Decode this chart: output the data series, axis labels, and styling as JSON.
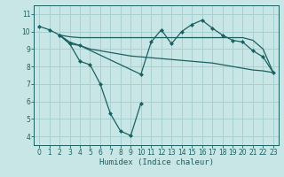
{
  "xlabel": "Humidex (Indice chaleur)",
  "bg_color": "#c8e6e6",
  "grid_color": "#a8d0d0",
  "line_color": "#1a6060",
  "xlim": [
    -0.5,
    23.5
  ],
  "ylim": [
    3.5,
    11.5
  ],
  "yticks": [
    4,
    5,
    6,
    7,
    8,
    9,
    10,
    11
  ],
  "xticks": [
    0,
    1,
    2,
    3,
    4,
    5,
    6,
    7,
    8,
    9,
    10,
    11,
    12,
    13,
    14,
    15,
    16,
    17,
    18,
    19,
    20,
    21,
    22,
    23
  ],
  "series": [
    {
      "x": [
        0,
        1,
        2,
        3,
        4,
        5,
        6,
        7,
        8,
        9,
        10
      ],
      "y": [
        10.3,
        10.1,
        9.8,
        9.3,
        8.3,
        8.1,
        7.0,
        5.3,
        4.3,
        4.05,
        5.9
      ],
      "marker": "D",
      "markersize": 2.5,
      "has_marker": true
    },
    {
      "x": [
        2,
        3,
        4,
        10,
        11,
        12,
        13,
        14,
        15,
        16,
        17,
        18,
        19,
        20,
        21,
        22,
        23
      ],
      "y": [
        9.8,
        9.3,
        9.2,
        7.55,
        9.4,
        10.1,
        9.3,
        10.0,
        10.4,
        10.65,
        10.2,
        9.8,
        9.5,
        9.4,
        8.9,
        8.55,
        7.65
      ],
      "marker": "D",
      "markersize": 2.5,
      "has_marker": true
    },
    {
      "x": [
        2,
        3,
        4,
        5,
        6,
        7,
        8,
        9,
        10,
        11,
        12,
        13,
        14,
        15,
        16,
        17,
        18,
        19,
        20,
        21,
        22,
        23
      ],
      "y": [
        9.8,
        9.7,
        9.65,
        9.65,
        9.65,
        9.65,
        9.65,
        9.65,
        9.65,
        9.65,
        9.65,
        9.65,
        9.65,
        9.65,
        9.65,
        9.65,
        9.65,
        9.65,
        9.65,
        9.5,
        9.0,
        7.65
      ],
      "marker": null,
      "markersize": 0,
      "has_marker": false
    },
    {
      "x": [
        2,
        3,
        4,
        5,
        6,
        7,
        8,
        9,
        10,
        11,
        12,
        13,
        14,
        15,
        16,
        17,
        18,
        19,
        20,
        21,
        22,
        23
      ],
      "y": [
        9.8,
        9.4,
        9.2,
        9.0,
        8.9,
        8.8,
        8.7,
        8.6,
        8.55,
        8.5,
        8.45,
        8.4,
        8.35,
        8.3,
        8.25,
        8.2,
        8.1,
        8.0,
        7.9,
        7.8,
        7.75,
        7.65
      ],
      "marker": null,
      "markersize": 0,
      "has_marker": false
    }
  ]
}
